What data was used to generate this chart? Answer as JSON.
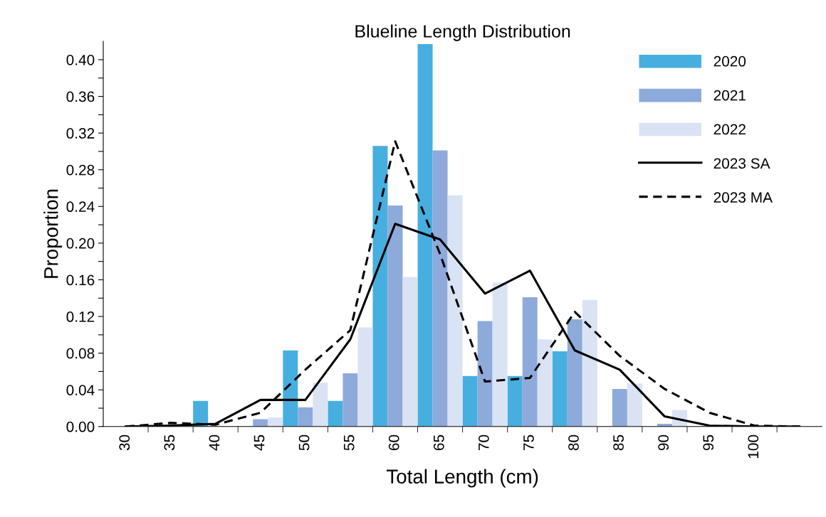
{
  "chart_data": {
    "type": "bar",
    "title": "Blueline Length Distribution",
    "xlabel": "Total Length (cm)",
    "ylabel": "Proportion",
    "categories": [
      "30",
      "35",
      "40",
      "45",
      "50",
      "55",
      "60",
      "65",
      "70",
      "75",
      "80",
      "85",
      "90",
      "95",
      "100",
      null
    ],
    "series": [
      {
        "name": "2020",
        "color": "#47aee0",
        "values": [
          0,
          0,
          0.028,
          0,
          0.083,
          0.028,
          0.306,
          0.417,
          0.055,
          0.055,
          0.082,
          0,
          0,
          0,
          0,
          0
        ]
      },
      {
        "name": "2021",
        "color": "#8eaadb",
        "values": [
          0,
          0,
          0,
          0.008,
          0.021,
          0.058,
          0.241,
          0.301,
          0.115,
          0.141,
          0.117,
          0.041,
          0.003,
          0,
          0,
          0
        ]
      },
      {
        "name": "2022",
        "color": "#dae3f3",
        "values": [
          0,
          0,
          0,
          0.01,
          0.048,
          0.108,
          0.163,
          0.252,
          0.157,
          0.095,
          0.138,
          0.047,
          0.018,
          0,
          0,
          0
        ]
      },
      {
        "name": "2023 SA",
        "type": "line",
        "color": "#000000",
        "line_style": "solid",
        "values": [
          0,
          0.001,
          0.003,
          0.029,
          0.029,
          0.095,
          0.221,
          0.204,
          0.145,
          0.17,
          0.083,
          0.062,
          0.011,
          0.001,
          0,
          0
        ]
      },
      {
        "name": "2023 MA",
        "type": "line",
        "color": "#000000",
        "line_style": "dashed",
        "values": [
          0,
          0.004,
          0.002,
          0.015,
          0.062,
          0.105,
          0.311,
          0.188,
          0.049,
          0.053,
          0.125,
          0.077,
          0.041,
          0.015,
          0.001,
          0
        ]
      }
    ],
    "ylim": [
      0,
      0.42
    ],
    "yticks": [
      {
        "value": 0,
        "label": "0.00"
      },
      {
        "value": 0.02,
        "label": null
      },
      {
        "value": 0.04,
        "label": "0.04"
      },
      {
        "value": 0.06,
        "label": null
      },
      {
        "value": 0.08,
        "label": "0.08"
      },
      {
        "value": 0.1,
        "label": null
      },
      {
        "value": 0.12,
        "label": "0.12"
      },
      {
        "value": 0.14,
        "label": null
      },
      {
        "value": 0.16,
        "label": "0.16"
      },
      {
        "value": 0.18,
        "label": null
      },
      {
        "value": 0.2,
        "label": "0.20"
      },
      {
        "value": 0.22,
        "label": null
      },
      {
        "value": 0.24,
        "label": "0.24"
      },
      {
        "value": 0.26,
        "label": null
      },
      {
        "value": 0.28,
        "label": "0.28"
      },
      {
        "value": 0.3,
        "label": null
      },
      {
        "value": 0.32,
        "label": "0.32"
      },
      {
        "value": 0.34,
        "label": null
      },
      {
        "value": 0.36,
        "label": "0.36"
      },
      {
        "value": 0.38,
        "label": null
      },
      {
        "value": 0.4,
        "label": "0.40"
      }
    ],
    "grid": false,
    "legend": "top right"
  }
}
